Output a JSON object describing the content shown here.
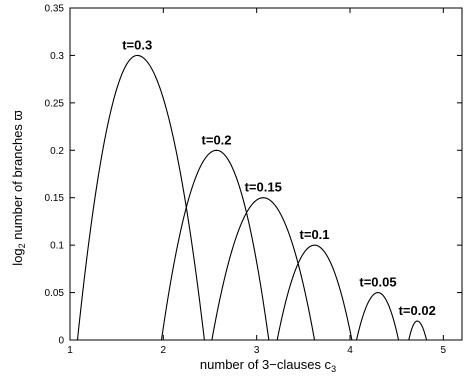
{
  "chart_data": {
    "type": "line",
    "xlabel": "number of 3−clauses c",
    "xlabel_sub": "3",
    "ylabel_parts": [
      "log",
      "2",
      " number of branches ",
      "ϖ"
    ],
    "xlim": [
      1,
      5.2
    ],
    "ylim": [
      0,
      0.35
    ],
    "xticks": [
      1,
      2,
      3,
      4,
      5
    ],
    "xtick_labels": [
      "1",
      "2",
      "3",
      "4",
      "5"
    ],
    "yticks": [
      0,
      0.05,
      0.1,
      0.15,
      0.2,
      0.25,
      0.3,
      0.35
    ],
    "ytick_labels": [
      "0",
      "0.05",
      "0.1",
      "0.15",
      "0.2",
      "0.25",
      "0.3",
      "0.35"
    ],
    "grid": false,
    "series": [
      {
        "name": "t=0.3",
        "label": "t=0.3",
        "x_start": 1.08,
        "x_end": 2.44,
        "x_peak": 1.72,
        "y_peak": 0.3
      },
      {
        "name": "t=0.2",
        "label": "t=0.2",
        "x_start": 1.98,
        "x_end": 3.13,
        "x_peak": 2.57,
        "y_peak": 0.2
      },
      {
        "name": "t=0.15",
        "label": "t=0.15",
        "x_start": 2.52,
        "x_end": 3.62,
        "x_peak": 3.07,
        "y_peak": 0.15
      },
      {
        "name": "t=0.1",
        "label": "t=0.1",
        "x_start": 3.22,
        "x_end": 4.02,
        "x_peak": 3.62,
        "y_peak": 0.1
      },
      {
        "name": "t=0.05",
        "label": "t=0.05",
        "x_start": 4.07,
        "x_end": 4.52,
        "x_peak": 4.3,
        "y_peak": 0.05
      },
      {
        "name": "t=0.02",
        "label": "t=0.02",
        "x_start": 4.63,
        "x_end": 4.82,
        "x_peak": 4.72,
        "y_peak": 0.02
      }
    ]
  }
}
